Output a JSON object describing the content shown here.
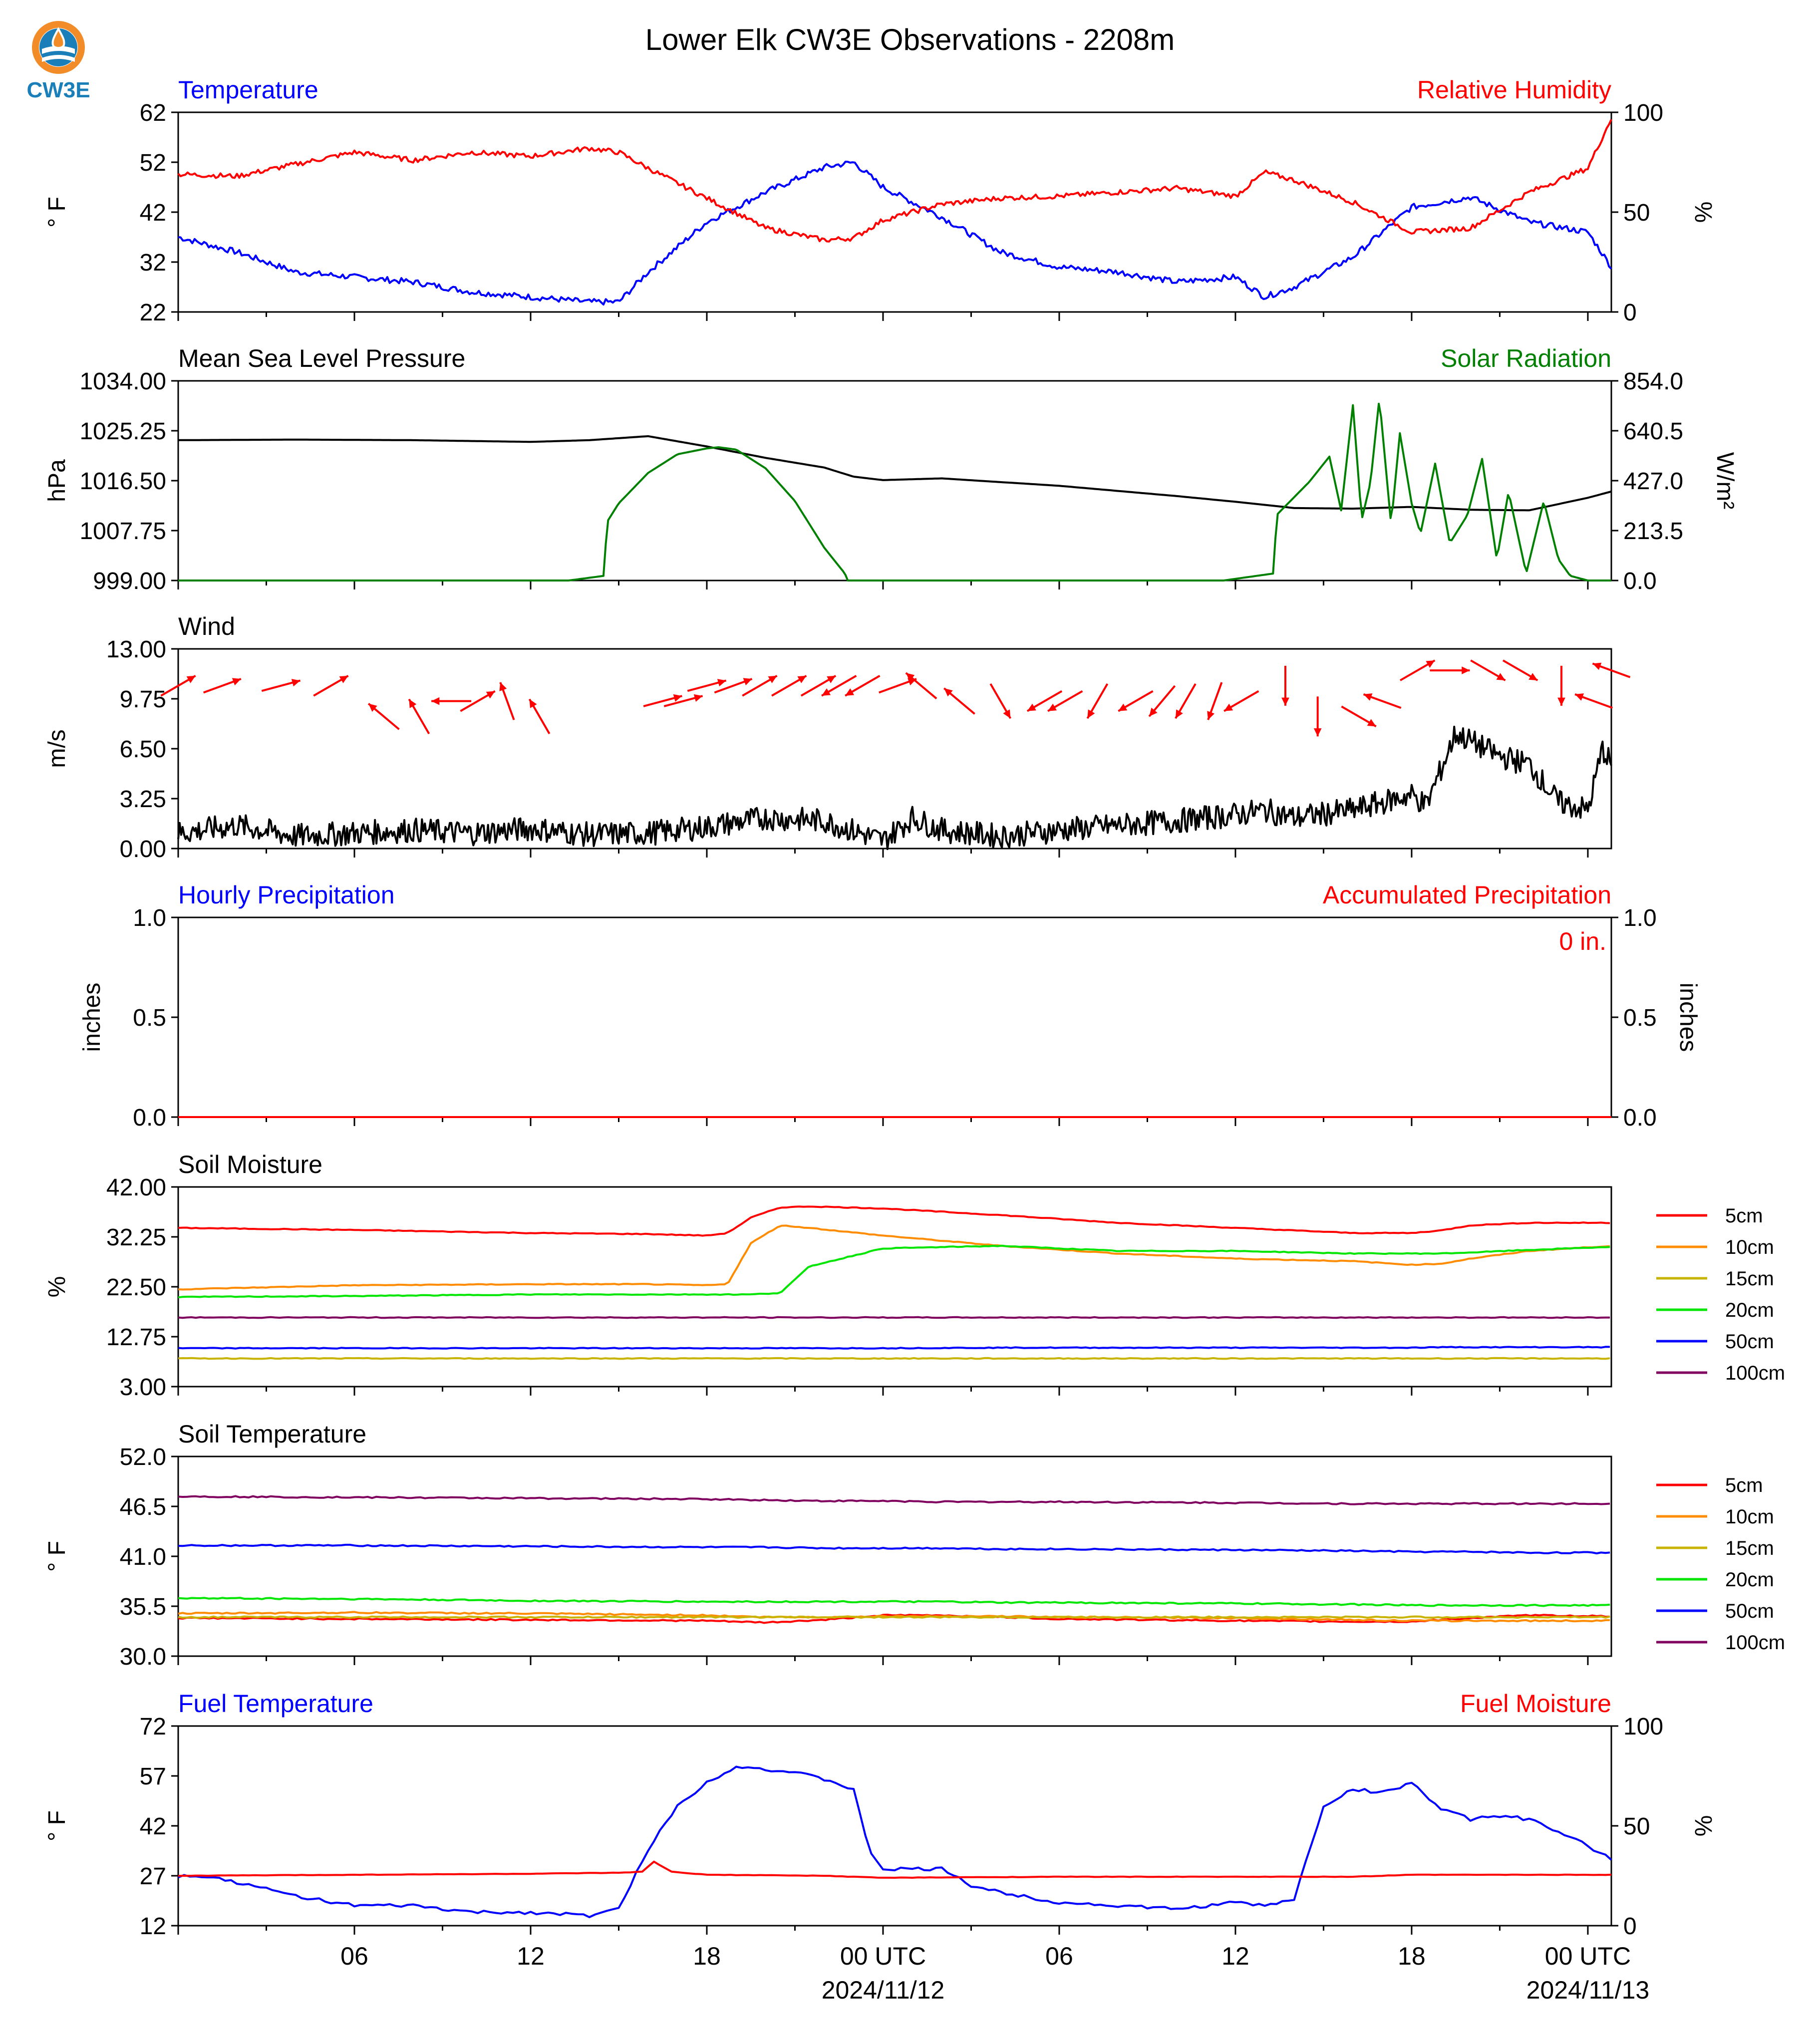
{
  "title": "Lower Elk CW3E Observations - 2208m",
  "logo": {
    "text": "CW3E",
    "icon": "cw3e-drop-logo",
    "colors": {
      "ring": "#f28c28",
      "drop": "#1a7fb8",
      "text": "#1a7fb8"
    }
  },
  "time_axis": {
    "ticks": [
      "06",
      "12",
      "18",
      "00 UTC",
      "06",
      "12",
      "18",
      "00 UTC"
    ],
    "dates": [
      "2024/11/12",
      "2024/11/13"
    ]
  },
  "colors": {
    "temp": "#0000ff",
    "rh": "#ff0000",
    "pressure": "#000000",
    "solar": "#008000",
    "wind": "#000000",
    "arrows": "#ff0000",
    "soil_5": "#ff0000",
    "soil_10": "#ff8c00",
    "soil_15": "#c8b400",
    "soil_20": "#00e600",
    "soil_50": "#0000ff",
    "soil_100": "#800060"
  },
  "chart_data": [
    {
      "id": "temp-rh",
      "type": "line",
      "title_left": "Temperature",
      "title_right": "Relative Humidity",
      "ylabel_left": "° F",
      "ylabel_right": "%",
      "ylim_left": [
        22,
        62
      ],
      "ylim_right": [
        0,
        100
      ],
      "yticks_left": [
        "62",
        "52",
        "42",
        "32",
        "22"
      ],
      "yticks_right": [
        "100",
        "50",
        "0"
      ],
      "x_hours": [
        0,
        2,
        4,
        6,
        8,
        10,
        12,
        14,
        15,
        16,
        18,
        20,
        22,
        23,
        24,
        26,
        28,
        30,
        32,
        34,
        36,
        37,
        38,
        40,
        42,
        44,
        46,
        48,
        48.8
      ],
      "series": [
        {
          "name": "Temperature",
          "axis": "left",
          "values": [
            37,
            34,
            30,
            29,
            28,
            26,
            25,
            24,
            24,
            30,
            40,
            46,
            51,
            52,
            47,
            41,
            34,
            31,
            30,
            28,
            29,
            25,
            27,
            33,
            43,
            45,
            40,
            38,
            31
          ]
        },
        {
          "name": "Relative Humidity",
          "axis": "right",
          "values": [
            69,
            68,
            74,
            80,
            76,
            80,
            78,
            82,
            80,
            72,
            57,
            42,
            36,
            37,
            46,
            54,
            57,
            58,
            60,
            62,
            58,
            70,
            66,
            55,
            40,
            42,
            60,
            72,
            97
          ]
        }
      ]
    },
    {
      "id": "pressure-solar",
      "type": "line",
      "title_left": "Mean Sea Level Pressure",
      "title_right": "Solar Radiation",
      "ylabel_left": "hPa",
      "ylabel_right": "W/m²",
      "ylim_left": [
        999,
        1034
      ],
      "ylim_right": [
        0,
        854
      ],
      "yticks_left": [
        "1034.00",
        "1025.25",
        "1016.50",
        "1007.75",
        "999.00"
      ],
      "yticks_right": [
        "854.0",
        "640.5",
        "427.0",
        "213.5",
        "0.0"
      ],
      "x_hours": [
        0,
        4,
        8,
        12,
        14,
        16,
        18,
        20,
        22,
        23,
        24,
        26,
        30,
        34,
        36,
        38,
        40,
        42,
        44,
        46,
        48,
        48.8
      ],
      "series": [
        {
          "name": "Mean Sea Level Pressure",
          "axis": "left",
          "values": [
            1023.6,
            1023.7,
            1023.6,
            1023.3,
            1023.6,
            1024.3,
            1022.5,
            1020.5,
            1018.8,
            1017.2,
            1016.6,
            1016.9,
            1015.6,
            1013.8,
            1012.8,
            1011.7,
            1011.6,
            1011.9,
            1011.4,
            1011.3,
            1013.5,
            1014.6
          ]
        },
        {
          "name": "Solar Radiation",
          "axis": "right",
          "x_hours": [
            0,
            13.3,
            14.5,
            14.6,
            15.0,
            16,
            17,
            18,
            18.4,
            19,
            20,
            21,
            22,
            22.7,
            22.8,
            35.6,
            37.3,
            37.4,
            38.5,
            39.2,
            39.6,
            40.0,
            40.3,
            40.6,
            40.9,
            41.3,
            41.6,
            42.0,
            42.3,
            42.8,
            43.3,
            43.9,
            44.4,
            44.9,
            45.3,
            45.9,
            46.5,
            47.0,
            47.4,
            48.0,
            48.8
          ],
          "values": [
            0,
            0,
            20,
            250,
            330,
            460,
            540,
            565,
            570,
            560,
            480,
            340,
            140,
            30,
            0,
            0,
            30,
            280,
            420,
            530,
            300,
            750,
            260,
            420,
            780,
            240,
            630,
            330,
            200,
            500,
            160,
            280,
            520,
            90,
            380,
            30,
            340,
            90,
            20,
            0,
            0
          ]
        }
      ]
    },
    {
      "id": "wind",
      "type": "line",
      "title_left": "Wind",
      "ylabel_left": "m/s",
      "ylim_left": [
        0,
        13
      ],
      "yticks_left": [
        "13.00",
        "9.75",
        "6.50",
        "3.25",
        "0.00"
      ],
      "x_hours": [
        0,
        2,
        4,
        6,
        8,
        10,
        12,
        14,
        16,
        18,
        20,
        22,
        24,
        25,
        26,
        28,
        30,
        32,
        34,
        36,
        37,
        38,
        40,
        42,
        42.5,
        43.5,
        44,
        45,
        46,
        47,
        48,
        48.5,
        48.8
      ],
      "series": [
        {
          "name": "Wind Speed",
          "axis": "left",
          "values": [
            1.0,
            1.5,
            0.8,
            1.0,
            1.2,
            1.0,
            1.3,
            0.9,
            1.0,
            1.4,
            2.0,
            1.8,
            0.5,
            2.0,
            1.2,
            0.8,
            1.2,
            1.5,
            1.8,
            2.2,
            2.5,
            2.0,
            2.5,
            3.5,
            2.8,
            7.5,
            7.0,
            6.0,
            5.5,
            3.0,
            2.5,
            6.5,
            5.5
          ]
        },
        {
          "name": "Wind Direction",
          "type": "arrows",
          "x_hours": [
            0,
            1.5,
            3.5,
            5.2,
            7,
            8.2,
            9.3,
            10.2,
            11.2,
            12.3,
            16.5,
            17.2,
            18,
            18.9,
            19.8,
            20.8,
            21.8,
            22.5,
            23.3,
            24.5,
            25.3,
            26.6,
            28,
            29.5,
            30.2,
            31.3,
            32.6,
            33.5,
            34.3,
            35.3,
            36.2,
            37.7,
            38.8,
            40.2,
            41.0,
            42.2,
            43.3,
            44.6,
            45.7,
            47.1,
            48.2,
            48.8
          ],
          "speed": [
            7,
            7,
            7,
            7,
            5,
            5,
            6,
            6,
            6,
            5,
            6,
            6,
            7,
            7,
            7,
            7,
            7,
            7,
            7,
            7,
            7,
            6,
            6,
            6,
            6,
            6,
            6,
            6,
            6,
            6,
            6,
            7,
            5,
            5,
            6,
            8,
            8,
            8,
            8,
            7,
            6,
            8
          ],
          "direction_deg": [
            240,
            250,
            255,
            240,
            130,
            150,
            90,
            240,
            160,
            150,
            255,
            255,
            255,
            250,
            240,
            240,
            240,
            60,
            60,
            250,
            130,
            130,
            330,
            60,
            60,
            30,
            60,
            40,
            30,
            20,
            60,
            360,
            360,
            300,
            110,
            240,
            270,
            300,
            300,
            360,
            110,
            110
          ]
        }
      ]
    },
    {
      "id": "precip",
      "type": "line",
      "title_left": "Hourly Precipitation",
      "title_right": "Accumulated Precipitation",
      "annotation": "0 in.",
      "ylabel_left": "inches",
      "ylabel_right": "inches",
      "ylim_left": [
        0,
        1
      ],
      "ylim_right": [
        0,
        1
      ],
      "yticks_left": [
        "1.0",
        "0.5",
        "0.0"
      ],
      "yticks_right": [
        "1.0",
        "0.5",
        "0.0"
      ],
      "x_hours": [
        0,
        48.8
      ],
      "series": [
        {
          "name": "Accumulated Precipitation",
          "axis": "right",
          "values": [
            0,
            0
          ]
        }
      ]
    },
    {
      "id": "soil-moisture",
      "type": "line",
      "title_left": "Soil Moisture",
      "ylabel_left": "%",
      "ylim_left": [
        3,
        42
      ],
      "yticks_left": [
        "42.00",
        "32.25",
        "22.50",
        "12.75",
        "3.00"
      ],
      "legend": [
        "5cm",
        "10cm",
        "15cm",
        "20cm",
        "50cm",
        "100cm"
      ],
      "x_hours": [
        0,
        6,
        12,
        16,
        18,
        18.7,
        19.5,
        20.5,
        21.5,
        24,
        28,
        32,
        36,
        40,
        42,
        43,
        44,
        46,
        48.8
      ],
      "series": [
        {
          "name": "5cm",
          "axis": "left",
          "values": [
            34.0,
            33.6,
            33.0,
            32.8,
            32.5,
            33.0,
            36.0,
            38.0,
            38.2,
            37.8,
            36.5,
            35.0,
            34.0,
            33.0,
            33.0,
            33.5,
            34.5,
            35.0,
            35.0
          ]
        },
        {
          "name": "10cm",
          "axis": "left",
          "values": [
            22.0,
            22.8,
            23.0,
            23.0,
            22.8,
            23.0,
            31.0,
            34.5,
            34.0,
            32.5,
            30.5,
            29.0,
            28.0,
            27.5,
            26.8,
            27.0,
            28.0,
            29.5,
            30.5
          ]
        },
        {
          "name": "15cm",
          "axis": "left",
          "values": [
            8.5,
            8.5,
            8.5,
            8.5,
            8.5,
            8.5,
            8.5,
            8.5,
            8.5,
            8.5,
            8.5,
            8.5,
            8.5,
            8.5,
            8.5,
            8.5,
            8.5,
            8.5,
            8.5
          ]
        },
        {
          "name": "20cm",
          "axis": "left",
          "values": [
            20.5,
            20.7,
            21.0,
            21.0,
            21.0,
            21.0,
            21.0,
            21.3,
            26.5,
            30.0,
            30.5,
            29.5,
            29.5,
            29.0,
            29.0,
            29.0,
            29.2,
            29.7,
            30.3
          ]
        },
        {
          "name": "50cm",
          "axis": "left",
          "values": [
            10.5,
            10.5,
            10.5,
            10.5,
            10.5,
            10.5,
            10.5,
            10.5,
            10.5,
            10.5,
            10.6,
            10.6,
            10.6,
            10.6,
            10.6,
            10.7,
            10.7,
            10.7,
            10.7
          ]
        },
        {
          "name": "100cm",
          "axis": "left",
          "values": [
            16.5,
            16.5,
            16.5,
            16.5,
            16.5,
            16.5,
            16.5,
            16.5,
            16.5,
            16.5,
            16.5,
            16.5,
            16.5,
            16.5,
            16.5,
            16.5,
            16.5,
            16.5,
            16.5
          ]
        }
      ]
    },
    {
      "id": "soil-temp",
      "type": "line",
      "title_left": "Soil Temperature",
      "ylabel_left": "° F",
      "ylim_left": [
        30,
        52
      ],
      "yticks_left": [
        "52.0",
        "46.5",
        "41.0",
        "35.5",
        "30.0"
      ],
      "legend": [
        "5cm",
        "10cm",
        "15cm",
        "20cm",
        "50cm",
        "100cm"
      ],
      "x_hours": [
        0,
        6,
        12,
        18,
        20,
        22,
        24,
        26,
        28,
        30,
        36,
        40,
        42,
        44,
        46,
        48.8
      ],
      "series": [
        {
          "name": "5cm",
          "axis": "left",
          "values": [
            34.2,
            34.1,
            34.0,
            33.9,
            33.7,
            34.0,
            34.5,
            34.5,
            34.3,
            34.1,
            33.9,
            33.8,
            33.8,
            34.2,
            34.5,
            34.4
          ]
        },
        {
          "name": "10cm",
          "axis": "left",
          "values": [
            34.7,
            34.8,
            34.7,
            34.5,
            34.3,
            34.3,
            34.4,
            34.4,
            34.4,
            34.3,
            34.2,
            34.0,
            33.9,
            33.9,
            33.9,
            33.9
          ]
        },
        {
          "name": "15cm",
          "axis": "left",
          "values": [
            34.3,
            34.3,
            34.3,
            34.3,
            34.3,
            34.3,
            34.3,
            34.3,
            34.3,
            34.3,
            34.3,
            34.3,
            34.3,
            34.3,
            34.3,
            34.3
          ]
        },
        {
          "name": "20cm",
          "axis": "left",
          "values": [
            36.4,
            36.3,
            36.1,
            36.0,
            36.0,
            36.0,
            36.0,
            36.0,
            35.9,
            35.9,
            35.8,
            35.7,
            35.6,
            35.6,
            35.6,
            35.6
          ]
        },
        {
          "name": "50cm",
          "axis": "left",
          "values": [
            42.2,
            42.2,
            42.1,
            42.0,
            42.0,
            41.9,
            41.9,
            41.9,
            41.8,
            41.8,
            41.7,
            41.6,
            41.5,
            41.5,
            41.4,
            41.4
          ]
        },
        {
          "name": "100cm",
          "axis": "left",
          "values": [
            47.6,
            47.5,
            47.4,
            47.3,
            47.2,
            47.1,
            47.1,
            47.0,
            47.0,
            47.0,
            46.9,
            46.8,
            46.8,
            46.8,
            46.8,
            46.8
          ]
        }
      ]
    },
    {
      "id": "fuel",
      "type": "line",
      "title_left": "Fuel Temperature",
      "title_right": "Fuel Moisture",
      "ylabel_left": "° F",
      "ylabel_right": "%",
      "ylim_left": [
        12,
        72
      ],
      "ylim_right": [
        0,
        100
      ],
      "yticks_left": [
        "72",
        "57",
        "42",
        "27",
        "12"
      ],
      "yticks_right": [
        "100",
        "50",
        "0"
      ],
      "x_hours": [
        0,
        1,
        2,
        4,
        6,
        8,
        10,
        12,
        14,
        15,
        16,
        17,
        18,
        19,
        20,
        21,
        22,
        23,
        23.5,
        24,
        26,
        26.5,
        27,
        28,
        30,
        32,
        34,
        36,
        37,
        38,
        39,
        40,
        41,
        42,
        43,
        44,
        45,
        46,
        47,
        48,
        48.8
      ],
      "series": [
        {
          "name": "Fuel Temperature",
          "axis": "left",
          "values": [
            27,
            27,
            25,
            21,
            18,
            18,
            16,
            16,
            15,
            17,
            35,
            48,
            55,
            60,
            59,
            58,
            56,
            53,
            35,
            29,
            29,
            27,
            24,
            22,
            19,
            18,
            17,
            19,
            18,
            20,
            48,
            53,
            52,
            55,
            47,
            44,
            45,
            44,
            40,
            36,
            32
          ]
        },
        {
          "name": "Fuel Moisture",
          "axis": "right",
          "x_hours": [
            0,
            6,
            12,
            15,
            15.8,
            16.2,
            16.8,
            18,
            22,
            24,
            30,
            36,
            40,
            42,
            44,
            48.8
          ],
          "values": [
            25,
            25.5,
            26,
            26.5,
            27,
            32,
            27,
            25.5,
            25,
            24,
            24.5,
            24.5,
            24.5,
            25.5,
            25.5,
            25.5
          ]
        }
      ]
    }
  ]
}
